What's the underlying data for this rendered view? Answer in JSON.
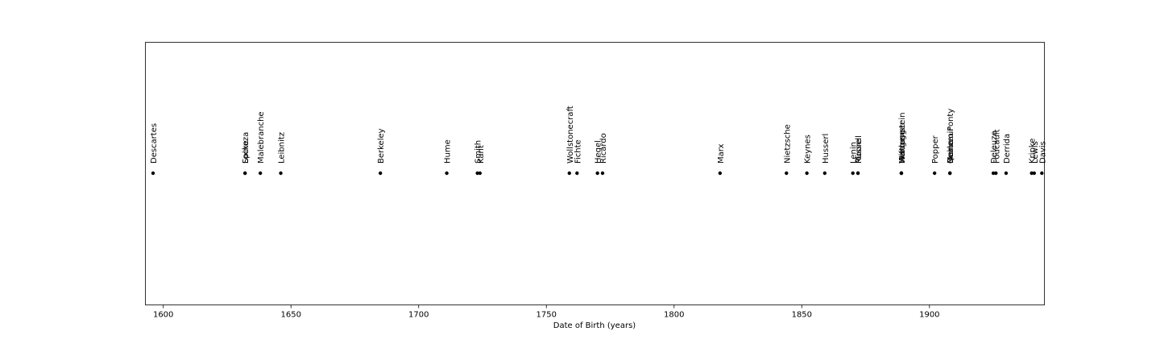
{
  "chart_data": {
    "type": "scatter",
    "title": "",
    "xlabel": "Date of Birth (years)",
    "ylabel": "",
    "xlim": [
      1593,
      1945
    ],
    "xticks": [
      1600,
      1650,
      1700,
      1750,
      1800,
      1850,
      1900
    ],
    "grid": false,
    "marker_color": "#000000",
    "points": [
      {
        "name": "Descartes",
        "x": 1596
      },
      {
        "name": "Spinoza",
        "x": 1632
      },
      {
        "name": "Locke",
        "x": 1632
      },
      {
        "name": "Malebranche",
        "x": 1638
      },
      {
        "name": "Leibnitz",
        "x": 1646
      },
      {
        "name": "Berkeley",
        "x": 1685
      },
      {
        "name": "Hume",
        "x": 1711
      },
      {
        "name": "Smith",
        "x": 1723
      },
      {
        "name": "Kant",
        "x": 1724
      },
      {
        "name": "Wollstonecraft",
        "x": 1759
      },
      {
        "name": "Fichte",
        "x": 1762
      },
      {
        "name": "Hegel",
        "x": 1770
      },
      {
        "name": "Ricardo",
        "x": 1772
      },
      {
        "name": "Marx",
        "x": 1818
      },
      {
        "name": "Nietzsche",
        "x": 1844
      },
      {
        "name": "Keynes",
        "x": 1852
      },
      {
        "name": "Husserl",
        "x": 1859
      },
      {
        "name": "Lenin",
        "x": 1870
      },
      {
        "name": "Russell",
        "x": 1872
      },
      {
        "name": "Moore",
        "x": 1872
      },
      {
        "name": "Wittgenstein",
        "x": 1889
      },
      {
        "name": "Heidegger",
        "x": 1889
      },
      {
        "name": "Marcuse",
        "x": 1889
      },
      {
        "name": "Popper",
        "x": 1902
      },
      {
        "name": "MerleauPonty",
        "x": 1908
      },
      {
        "name": "Beauvoir",
        "x": 1908
      },
      {
        "name": "Quine",
        "x": 1908
      },
      {
        "name": "Deleuze",
        "x": 1925
      },
      {
        "name": "Foucault",
        "x": 1926
      },
      {
        "name": "Derrida",
        "x": 1930
      },
      {
        "name": "Kripke",
        "x": 1940
      },
      {
        "name": "Lewis",
        "x": 1941
      },
      {
        "name": "Davis",
        "x": 1944
      }
    ]
  }
}
